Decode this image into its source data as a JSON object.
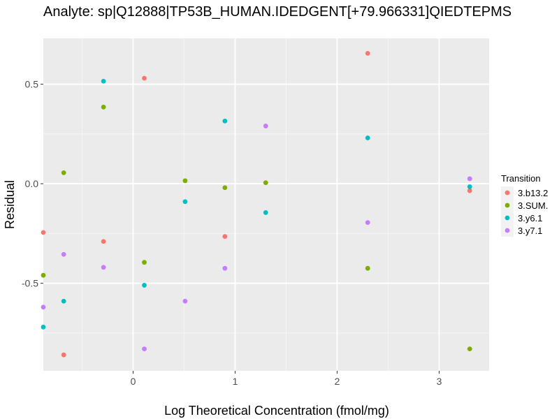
{
  "chart_data": {
    "type": "scatter",
    "title": "Analyte: sp|Q12888|TP53B_HUMAN.IDEDGENT[+79.966331]QIEDTEPMS",
    "xlabel": "Log Theoretical Concentration (fmol/mg)",
    "ylabel": "Residual",
    "xlim": [
      -0.88,
      3.49
    ],
    "ylim": [
      -0.94,
      0.73
    ],
    "x_ticks": [
      0,
      1,
      2,
      3
    ],
    "x_tick_labels": [
      "0",
      "1",
      "2",
      "3"
    ],
    "y_ticks": [
      -0.5,
      0.0,
      0.5
    ],
    "y_tick_labels": [
      "-0.5",
      "0.0",
      "0.5"
    ],
    "grid": true,
    "background": "#ebebeb",
    "legend_title": "Transition",
    "legend_position": "right",
    "series": [
      {
        "name": "3.b13.2",
        "color": "#f8766d",
        "points": [
          {
            "x": -0.88,
            "y": -0.245
          },
          {
            "x": -0.68,
            "y": -0.86
          },
          {
            "x": -0.29,
            "y": -0.29
          },
          {
            "x": 0.11,
            "y": 0.53
          },
          {
            "x": 0.9,
            "y": -0.265
          },
          {
            "x": 2.3,
            "y": 0.655
          },
          {
            "x": 3.3,
            "y": -0.035
          }
        ]
      },
      {
        "name": "3.SUM.",
        "color": "#7cae00",
        "points": [
          {
            "x": -0.88,
            "y": -0.46
          },
          {
            "x": -0.68,
            "y": 0.055
          },
          {
            "x": -0.29,
            "y": 0.385
          },
          {
            "x": 0.11,
            "y": -0.395
          },
          {
            "x": 0.51,
            "y": 0.015
          },
          {
            "x": 0.9,
            "y": -0.02
          },
          {
            "x": 1.3,
            "y": 0.005
          },
          {
            "x": 2.3,
            "y": -0.425
          },
          {
            "x": 3.3,
            "y": -0.83
          }
        ]
      },
      {
        "name": "3.y6.1",
        "color": "#00bfc4",
        "points": [
          {
            "x": -0.88,
            "y": -0.72
          },
          {
            "x": -0.68,
            "y": -0.59
          },
          {
            "x": -0.29,
            "y": 0.515
          },
          {
            "x": 0.11,
            "y": -0.51
          },
          {
            "x": 0.51,
            "y": -0.09
          },
          {
            "x": 0.9,
            "y": 0.315
          },
          {
            "x": 1.3,
            "y": -0.145
          },
          {
            "x": 2.3,
            "y": 0.23
          },
          {
            "x": 3.3,
            "y": -0.015
          }
        ]
      },
      {
        "name": "3.y7.1",
        "color": "#c77cff",
        "points": [
          {
            "x": -0.88,
            "y": -0.62
          },
          {
            "x": -0.68,
            "y": -0.355
          },
          {
            "x": -0.29,
            "y": -0.42
          },
          {
            "x": 0.11,
            "y": -0.83
          },
          {
            "x": 0.51,
            "y": -0.59
          },
          {
            "x": 0.9,
            "y": -0.425
          },
          {
            "x": 1.3,
            "y": 0.29
          },
          {
            "x": 2.3,
            "y": -0.195
          },
          {
            "x": 3.3,
            "y": 0.025
          }
        ]
      }
    ]
  }
}
